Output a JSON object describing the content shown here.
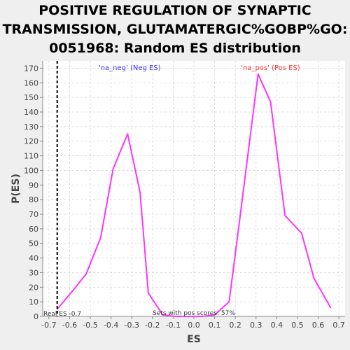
{
  "chart_data": {
    "type": "line",
    "title_lines": [
      "POSITIVE REGULATION OF SYNAPTIC",
      "TRANSMISSION, GLUTAMATERGIC%GOBP%GO:",
      "0051968: Random ES distribution"
    ],
    "xlabel": "ES",
    "ylabel": "P(ES)",
    "xlim": [
      -0.73,
      0.73
    ],
    "ylim": [
      0,
      175
    ],
    "xticks": [
      -0.7,
      -0.6,
      -0.5,
      -0.4,
      -0.3,
      -0.2,
      -0.1,
      0.0,
      0.1,
      0.2,
      0.3,
      0.4,
      0.5,
      0.6,
      0.7
    ],
    "xtick_labels": [
      "-0.7",
      "-0.6",
      "-0.5",
      "-0.4",
      "-0.3",
      "-0.2",
      "-0.1",
      "0.0",
      "0.1",
      "0.2",
      "0.3",
      "0.4",
      "0.5",
      "0.6",
      "0.7"
    ],
    "yticks": [
      0,
      10,
      20,
      30,
      40,
      50,
      60,
      70,
      80,
      90,
      100,
      110,
      120,
      130,
      140,
      150,
      160,
      170
    ],
    "grid": true,
    "series": [
      {
        "color": "#ff33ff",
        "x": [
          -0.66,
          -0.6,
          -0.52,
          -0.45,
          -0.39,
          -0.32,
          -0.26,
          -0.22,
          -0.15,
          -0.09,
          -0.03,
          0.04,
          0.1,
          0.17,
          0.22,
          0.31,
          0.37,
          0.44,
          0.52,
          0.58,
          0.66
        ],
        "y": [
          5,
          15,
          29,
          54,
          101,
          125,
          85,
          16,
          1,
          0,
          0,
          0,
          1,
          10,
          65,
          166,
          147,
          69,
          57,
          26,
          6
        ]
      }
    ],
    "real_es": -0.66,
    "annotations": {
      "neg_label": "'na_neg' (Neg ES)",
      "pos_label": "'na_pos' (Pos ES)",
      "real_es_label": "Real ES -0.7",
      "pos_scores_label": "Sets with pos scores: 57%"
    },
    "colors": {
      "neg_label": "#3333ff",
      "pos_label": "#ff3333",
      "line": "#ff33ff",
      "plot_bg": "#ffffff",
      "page_bg": "#efefef"
    }
  }
}
